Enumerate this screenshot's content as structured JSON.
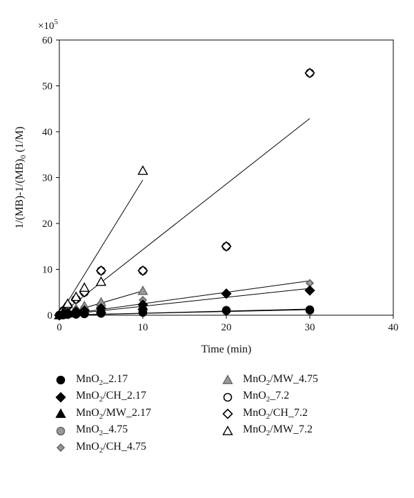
{
  "chart_data": {
    "type": "scatter",
    "ylabel": "1/(MB)-1/(MB)0 (1/M)",
    "ylabel_parts": {
      "pre": "1/(MB)-1/(MB)",
      "sub": "0",
      "post": " (1/M)"
    },
    "xlabel": "Time (min)",
    "multiplier_label": "×10",
    "multiplier_exp": "5",
    "xlim": [
      0,
      40
    ],
    "ylim": [
      0,
      60
    ],
    "x_ticks": [
      0,
      10,
      20,
      30,
      40
    ],
    "y_ticks": [
      0,
      10,
      20,
      30,
      40,
      50,
      60
    ],
    "grid": false,
    "legend_position": "bottom",
    "series": [
      {
        "name": "MnO2_2.17",
        "label_parts": [
          "MnO",
          "2",
          "_2.17"
        ],
        "marker": "circle",
        "fill": "#000000",
        "stroke": "#000000",
        "x": [
          0,
          0.5,
          1,
          2,
          3,
          5,
          10,
          20,
          30
        ],
        "y": [
          0,
          0.1,
          0.15,
          0.2,
          0.3,
          0.4,
          0.6,
          1.0,
          1.2
        ],
        "fit": [
          0,
          0.04
        ]
      },
      {
        "name": "MnO2/CH_2.17",
        "label_parts": [
          "MnO",
          "2",
          "/CH_2.17"
        ],
        "marker": "diamond",
        "fill": "#000000",
        "stroke": "#000000",
        "x": [
          0,
          0.5,
          1,
          2,
          3,
          5,
          10,
          20,
          30
        ],
        "y": [
          0,
          0.3,
          0.5,
          0.8,
          1.0,
          1.5,
          2.3,
          4.7,
          5.4
        ],
        "fit": [
          0,
          0.195
        ]
      },
      {
        "name": "MnO2/MW_2.17",
        "label_parts": [
          "MnO",
          "2",
          "/MW_2.17"
        ],
        "marker": "triangle",
        "fill": "#000000",
        "stroke": "#000000",
        "x": [
          0,
          0.5,
          1,
          2,
          3,
          5,
          10
        ],
        "y": [
          0,
          0.2,
          0.4,
          0.7,
          1.0,
          1.3,
          2.0
        ],
        "fit": null
      },
      {
        "name": "MnO2_4.75",
        "label_parts": [
          "MnO",
          "2",
          "_4.75"
        ],
        "marker": "circle",
        "fill": "#999999",
        "stroke": "#666666",
        "x": [
          0,
          0.5,
          1,
          2,
          3,
          5,
          10,
          20,
          30
        ],
        "y": [
          0,
          0.1,
          0.2,
          0.3,
          0.4,
          0.5,
          0.7,
          1.1,
          1.0
        ],
        "fit": [
          0,
          0.045
        ]
      },
      {
        "name": "MnO2/CH_4.75",
        "label_parts": [
          "MnO",
          "2",
          "/CH_4.75"
        ],
        "marker": "diamond-small",
        "fill": "#999999",
        "stroke": "#666666",
        "x": [
          0,
          0.5,
          1,
          2,
          3,
          5,
          10,
          20,
          30
        ],
        "y": [
          0,
          0.4,
          0.8,
          1.3,
          1.8,
          2.6,
          3.3,
          4.9,
          7.0
        ],
        "fit": [
          0,
          0.25
        ]
      },
      {
        "name": "MnO2/MW_4.75",
        "label_parts": [
          "MnO",
          "2",
          "/MW_4.75"
        ],
        "marker": "triangle",
        "fill": "#999999",
        "stroke": "#666666",
        "x": [
          0,
          0.5,
          1,
          2,
          3,
          5,
          10
        ],
        "y": [
          0,
          0.4,
          0.8,
          1.4,
          2.0,
          2.8,
          5.3
        ],
        "fit": [
          0,
          0.53
        ],
        "fit_xmax": 10
      },
      {
        "name": "MnO2_7.2",
        "label_parts": [
          "MnO",
          "2",
          "_7.2"
        ],
        "marker": "circle",
        "fill": "#ffffff",
        "stroke": "#000000",
        "x": [
          0,
          0.5,
          1,
          2,
          3,
          5,
          10,
          20,
          30
        ],
        "y": [
          0,
          1.0,
          2.0,
          3.5,
          5.0,
          9.7,
          9.7,
          15.0,
          52.8
        ],
        "fit": [
          0,
          1.43
        ]
      },
      {
        "name": "MnO2/CH_7.2",
        "label_parts": [
          "MnO",
          "2",
          "/CH_7.2"
        ],
        "marker": "diamond",
        "fill": "#ffffff",
        "stroke": "#000000",
        "x": [
          0,
          0.5,
          1,
          2,
          3,
          5,
          10,
          20,
          30
        ],
        "y": [
          0,
          1.0,
          2.0,
          3.5,
          5.0,
          9.7,
          9.7,
          15.0,
          52.8
        ],
        "fit": null
      },
      {
        "name": "MnO2/MW_7.2",
        "label_parts": [
          "MnO",
          "2",
          "/MW_7.2"
        ],
        "marker": "triangle",
        "fill": "#ffffff",
        "stroke": "#000000",
        "x": [
          0,
          0.5,
          1,
          2,
          3,
          5,
          10
        ],
        "y": [
          0,
          0.8,
          2.5,
          4.0,
          6.0,
          7.3,
          31.5
        ],
        "fit": [
          0,
          2.95
        ],
        "fit_xmax": 10
      }
    ]
  }
}
